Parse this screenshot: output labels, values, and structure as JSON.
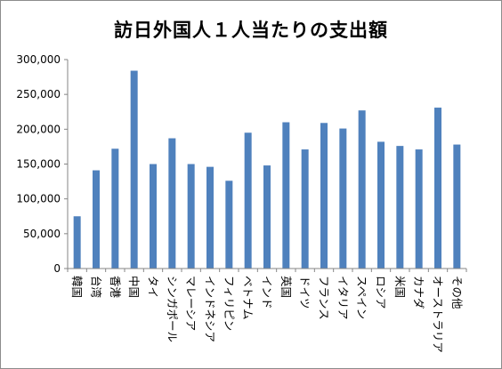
{
  "chart_data": {
    "type": "bar",
    "title": "訪日外国人１人当たりの支出額",
    "xlabel": "",
    "ylabel": "",
    "ylim": [
      0,
      300000
    ],
    "yticks": [
      0,
      50000,
      100000,
      150000,
      200000,
      250000,
      300000
    ],
    "ytick_labels": [
      "0",
      "50,000",
      "100,000",
      "150,000",
      "200,000",
      "250,000",
      "300,000"
    ],
    "grid": false,
    "legend": "none",
    "bar_color": "#4f81bd",
    "categories": [
      "韓国",
      "台湾",
      "香港",
      "中国",
      "タイ",
      "シンガポール",
      "マレーシア",
      "インドネシア",
      "フィリピン",
      "ベトナム",
      "インド",
      "英国",
      "ドイツ",
      "フランス",
      "イタリア",
      "スペイン",
      "ロシア",
      "米国",
      "カナダ",
      "オーストラリア",
      "その他"
    ],
    "values": [
      75000,
      141000,
      172000,
      284000,
      150000,
      187000,
      150000,
      146000,
      126000,
      195000,
      148000,
      210000,
      171000,
      209000,
      201000,
      227000,
      182000,
      176000,
      171000,
      231000,
      178000
    ]
  }
}
